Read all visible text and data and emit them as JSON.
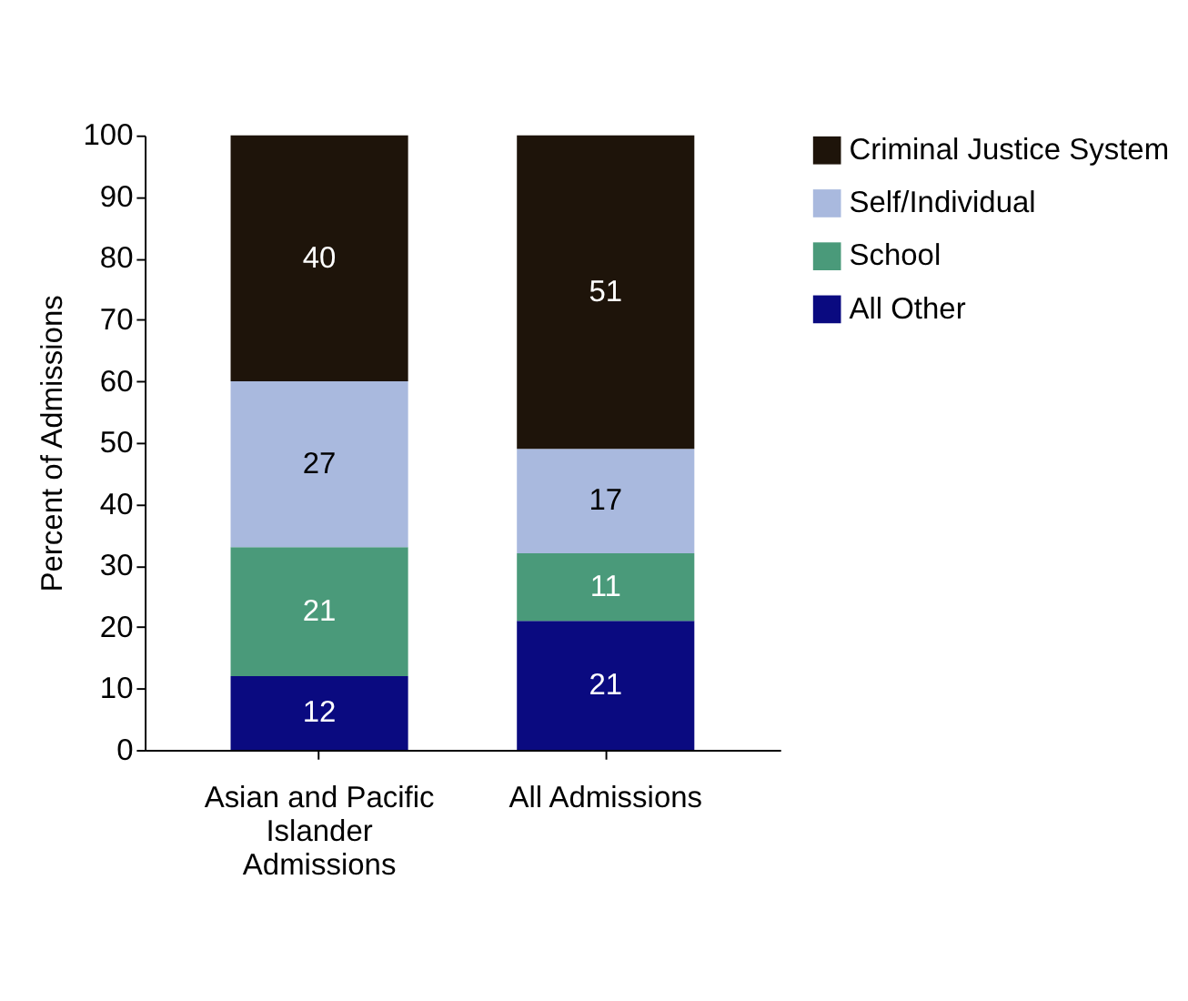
{
  "chart_data": {
    "type": "bar",
    "stacked": true,
    "categories": [
      "Asian and Pacific Islander Admissions",
      "All Admissions"
    ],
    "ylabel": "Percent of Admissions",
    "ylim": [
      0,
      100
    ],
    "yticks": [
      0,
      10,
      20,
      30,
      40,
      50,
      60,
      70,
      80,
      90,
      100
    ],
    "series": [
      {
        "name": "All Other",
        "color": "#0a0a80",
        "values": [
          12,
          21
        ]
      },
      {
        "name": "School",
        "color": "#4a9a7a",
        "values": [
          21,
          11
        ]
      },
      {
        "name": "Self/Individual",
        "color": "#a9b9de",
        "values": [
          27,
          17
        ]
      },
      {
        "name": "Criminal Justice System",
        "color": "#1e140a",
        "values": [
          40,
          51
        ]
      }
    ],
    "data_labels": true,
    "grid": false,
    "legend": "right"
  }
}
